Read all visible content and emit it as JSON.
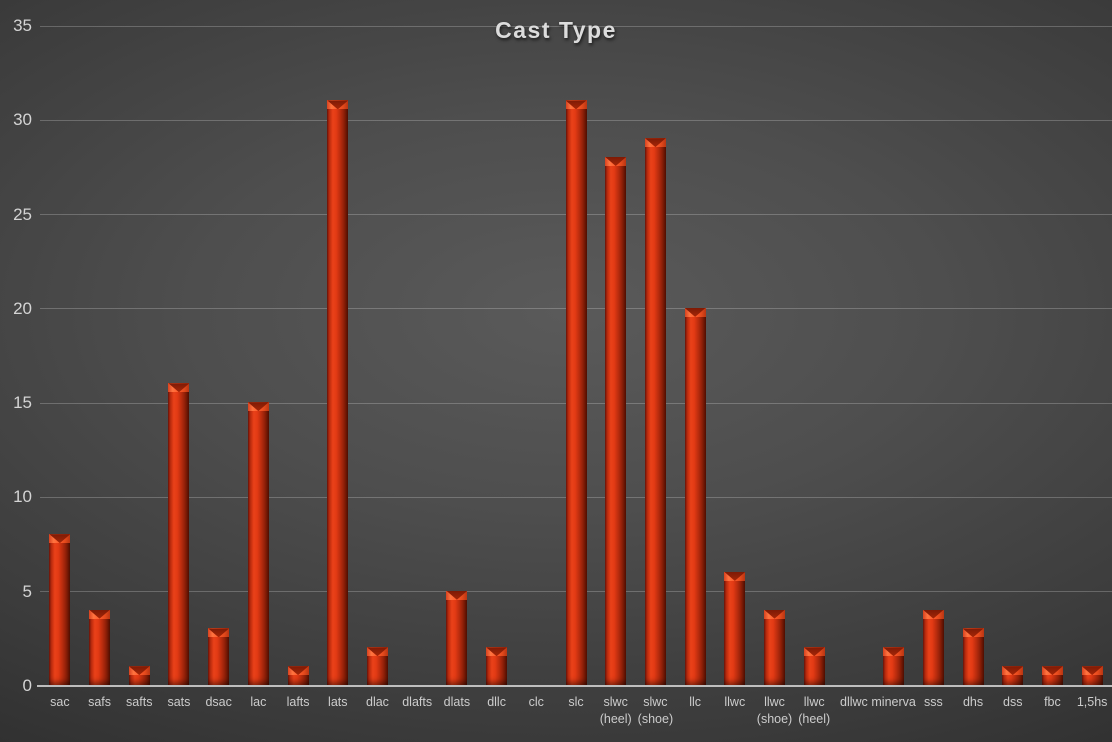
{
  "chart_data": {
    "type": "bar",
    "title": "Cast Type",
    "categories": [
      "sac",
      "safs",
      "safts",
      "sats",
      "dsac",
      "lac",
      "lafts",
      "lats",
      "dlac",
      "dlafts",
      "dlats",
      "dllc",
      "clc",
      "slc",
      "slwc\n(heel)",
      "slwc\n(shoe)",
      "llc",
      "llwc",
      "llwc\n(shoe)",
      "llwc\n(heel)",
      "dllwc",
      "minerva",
      "sss",
      "dhs",
      "dss",
      "fbc",
      "1,5hs"
    ],
    "values": [
      8,
      4,
      1,
      16,
      3,
      15,
      1,
      31,
      2,
      0,
      5,
      2,
      0,
      31,
      28,
      29,
      20,
      6,
      4,
      2,
      0,
      2,
      4,
      3,
      1,
      1,
      1
    ],
    "xlabel": "",
    "ylabel": "",
    "ylim": [
      0,
      35
    ],
    "ytick_step": 5,
    "yticks": [
      "0",
      "5",
      "10",
      "15",
      "20",
      "25",
      "30",
      "35"
    ],
    "grid": true,
    "legend": false
  },
  "colors": {
    "bar_highlight": "#ea4119",
    "bar_shadow": "#70160a",
    "background_center": "#5a5a5a",
    "background_edge": "#1f1f1f",
    "gridline": "#6f6f6f",
    "axis_line": "#bcbcbc",
    "title_text": "#dcdcdc",
    "tick_text": "#cccccc"
  }
}
